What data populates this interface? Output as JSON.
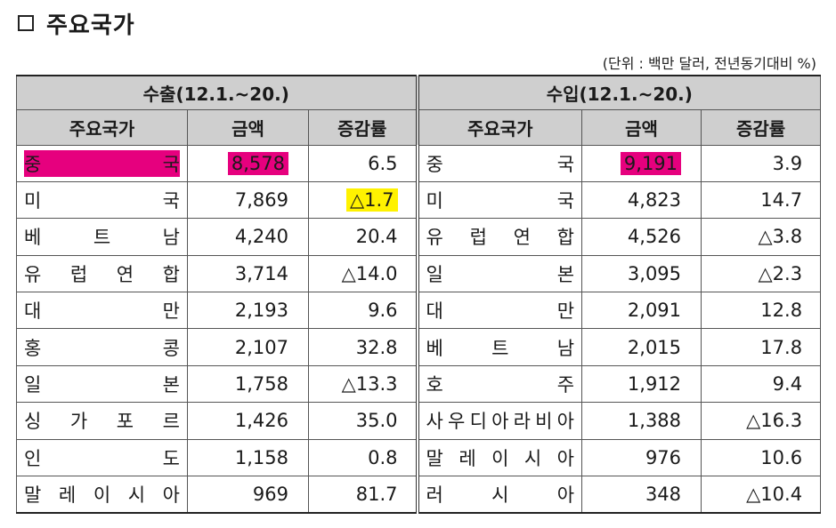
{
  "title": "주요국가",
  "unit_note": "(단위 : 백만 달러, 전년동기대비  %)",
  "export_header": "수출(12.1.~20.)",
  "import_header": "수입(12.1.~20.)",
  "columns": {
    "country": "주요국가",
    "amount": "금액",
    "rate": "증감률"
  },
  "rows": [
    {
      "ex_country": [
        "중",
        "국"
      ],
      "ex_amount": "8,578",
      "ex_rate": "6.5",
      "im_country": [
        "중",
        "국"
      ],
      "im_amount": "9,191",
      "im_rate": "3.9"
    },
    {
      "ex_country": [
        "미",
        "국"
      ],
      "ex_amount": "7,869",
      "ex_rate": "△1.7",
      "im_country": [
        "미",
        "국"
      ],
      "im_amount": "4,823",
      "im_rate": "14.7"
    },
    {
      "ex_country": [
        "베",
        "트",
        "남"
      ],
      "ex_amount": "4,240",
      "ex_rate": "20.4",
      "im_country": [
        "유",
        "럽",
        "연",
        "합"
      ],
      "im_amount": "4,526",
      "im_rate": "△3.8"
    },
    {
      "ex_country": [
        "유",
        "럽",
        "연",
        "합"
      ],
      "ex_amount": "3,714",
      "ex_rate": "△14.0",
      "im_country": [
        "일",
        "본"
      ],
      "im_amount": "3,095",
      "im_rate": "△2.3"
    },
    {
      "ex_country": [
        "대",
        "만"
      ],
      "ex_amount": "2,193",
      "ex_rate": "9.6",
      "im_country": [
        "대",
        "만"
      ],
      "im_amount": "2,091",
      "im_rate": "12.8"
    },
    {
      "ex_country": [
        "홍",
        "콩"
      ],
      "ex_amount": "2,107",
      "ex_rate": "32.8",
      "im_country": [
        "베",
        "트",
        "남"
      ],
      "im_amount": "2,015",
      "im_rate": "17.8"
    },
    {
      "ex_country": [
        "일",
        "본"
      ],
      "ex_amount": "1,758",
      "ex_rate": "△13.3",
      "im_country": [
        "호",
        "주"
      ],
      "im_amount": "1,912",
      "im_rate": "9.4"
    },
    {
      "ex_country": [
        "싱",
        "가",
        "포",
        "르"
      ],
      "ex_amount": "1,426",
      "ex_rate": "35.0",
      "im_country": [
        "사",
        "우",
        "디",
        "아",
        "라",
        "비",
        "아"
      ],
      "im_amount": "1,388",
      "im_rate": "△16.3"
    },
    {
      "ex_country": [
        "인",
        "도"
      ],
      "ex_amount": "1,158",
      "ex_rate": "0.8",
      "im_country": [
        "말",
        "레",
        "이",
        "시",
        "아"
      ],
      "im_amount": "976",
      "im_rate": "10.6"
    },
    {
      "ex_country": [
        "말",
        "레",
        "이",
        "시",
        "아"
      ],
      "ex_amount": "969",
      "ex_rate": "81.7",
      "im_country": [
        "러",
        "시",
        "아"
      ],
      "im_amount": "348",
      "im_rate": "△10.4"
    }
  ],
  "highlights": {
    "pink": "#e6007e",
    "yellow": "#fff200"
  }
}
